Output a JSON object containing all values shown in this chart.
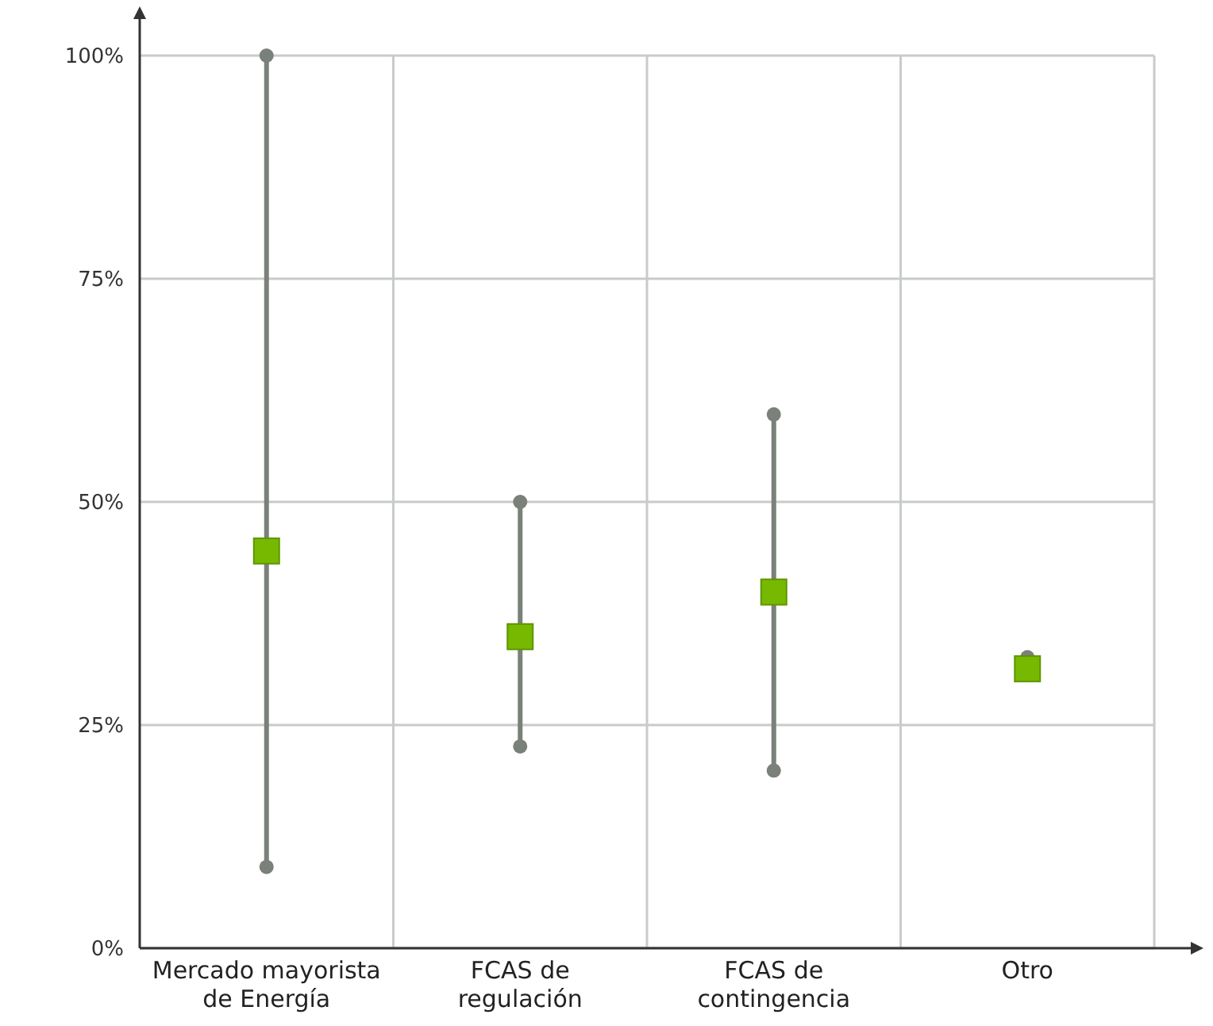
{
  "chart_data": {
    "type": "bar",
    "categories": [
      "Mercado mayorista de Energía",
      "FCAS de regulación",
      "FCAS de contingencia",
      "Otro"
    ],
    "series": [
      {
        "color": "#7a807a",
        "base": [
          9.1,
          22.6,
          19.9,
          null
        ],
        "values": [
          90.9,
          27.4,
          39.9,
          null
        ]
      },
      {
        "type": "scatter",
        "color": "#7a807a",
        "marker": "circle",
        "values": [
          9.1,
          22.6,
          19.9,
          null
        ]
      },
      {
        "type": "scatter",
        "color": "#7a807a",
        "marker": "circle",
        "values": [
          100,
          50,
          59.8,
          32.6
        ]
      },
      {
        "type": "scatter",
        "color": "#76b900",
        "values": [
          44.5,
          34.9,
          39.9,
          31.3
        ]
      }
    ],
    "ylim": [
      0,
      100
    ],
    "yticks": [
      {
        "value": 0,
        "label": "0%"
      },
      {
        "value": 25,
        "label": "25%"
      },
      {
        "value": 50,
        "label": "50%"
      },
      {
        "value": 75,
        "label": "75%"
      },
      {
        "value": 100,
        "label": "100%"
      }
    ],
    "grid": true,
    "marker": "square"
  }
}
